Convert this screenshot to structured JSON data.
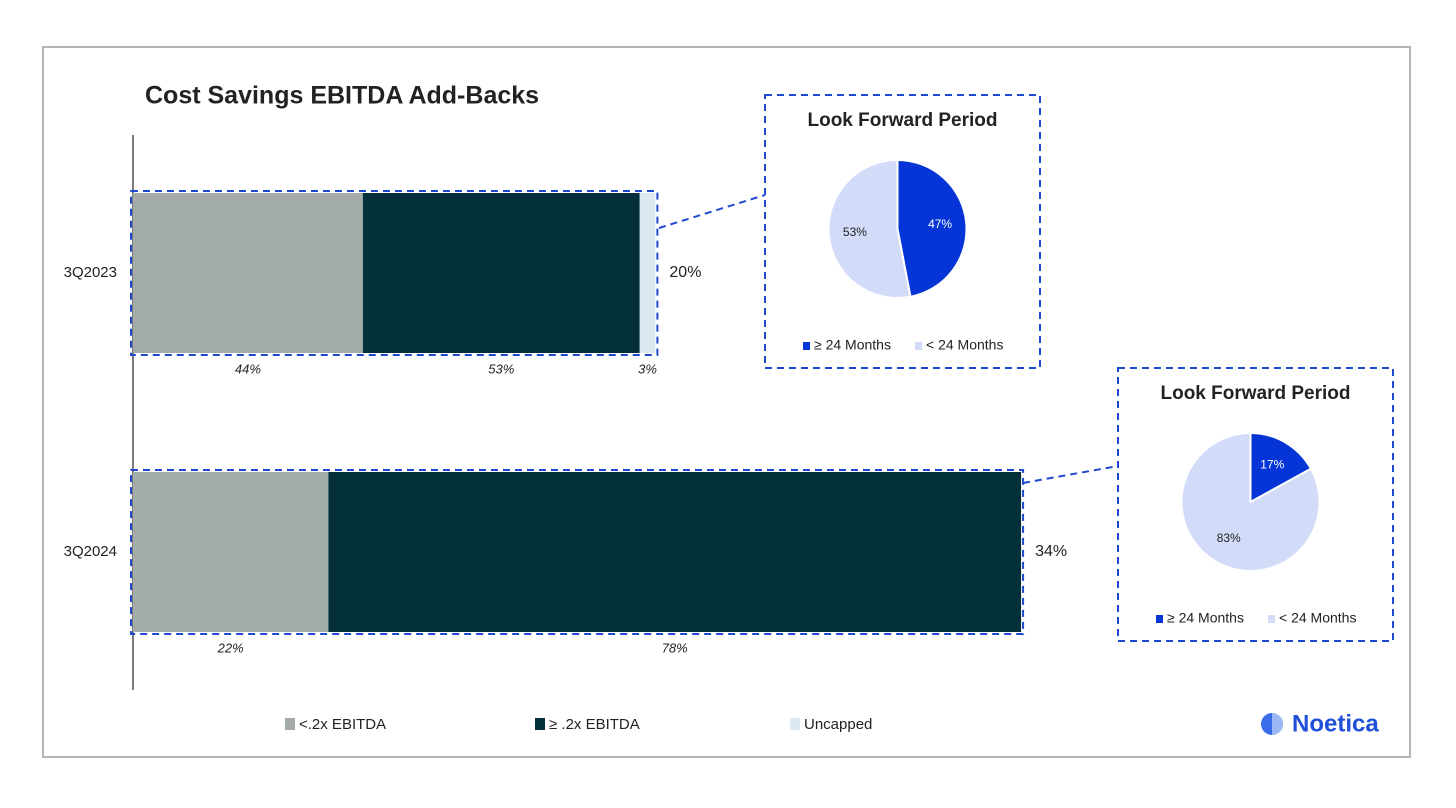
{
  "chart_data": [
    {
      "type": "stacked-barh",
      "title": "Cost Savings EBITDA Add-Backs",
      "categories": [
        "3Q2023",
        "3Q2024"
      ],
      "values": [
        20,
        34
      ],
      "value_labels": [
        "20%",
        "34%"
      ],
      "series": [
        {
          "name": "<.2x EBITDA",
          "color": "#a3aca6",
          "values": [
            44,
            22
          ],
          "value_labels": [
            "44%",
            "22%"
          ]
        },
        {
          "name": "≥ .2x EBITDA",
          "color": "#03303b",
          "values": [
            53,
            78
          ],
          "value_labels": [
            "53%",
            "78%"
          ]
        },
        {
          "name": "Uncapped",
          "color": "#dde9f0",
          "values": [
            3,
            null
          ],
          "value_labels": [
            "3%",
            null
          ]
        }
      ]
    },
    {
      "type": "pie",
      "title": "Look Forward Period",
      "categories": [
        "≥ 24 Months",
        "< 24 Months"
      ],
      "values": [
        47,
        53
      ],
      "value_labels": [
        "47%",
        "53%"
      ],
      "colors": [
        "#0535d6",
        "#d2dcf8"
      ]
    },
    {
      "type": "pie",
      "title": "Look Forward Period",
      "categories": [
        "≥ 24 Months",
        "< 24 Months"
      ],
      "values": [
        17,
        83
      ],
      "value_labels": [
        "17%",
        "83%"
      ],
      "colors": [
        "#0535d6",
        "#d2dcf8"
      ]
    }
  ],
  "brand": "Noetica"
}
